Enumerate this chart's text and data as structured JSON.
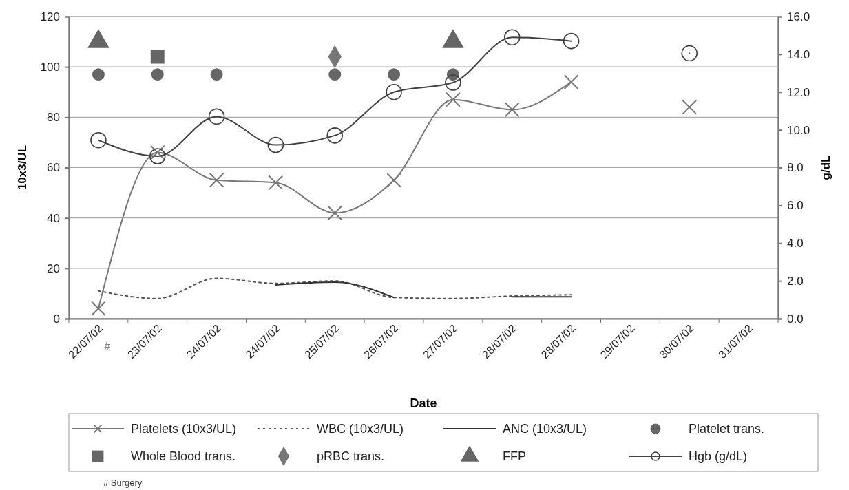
{
  "chart_data": {
    "type": "line",
    "xlabel": "Date",
    "ylabel": "10x3/UL",
    "y2label": "g/dL",
    "categories": [
      "22/07/02",
      "23/07/02",
      "24/07/02",
      "24/07/02",
      "25/07/02",
      "26/07/02",
      "27/07/02",
      "28/07/02",
      "28/07/02",
      "29/07/02",
      "30/07/02",
      "31/07/02"
    ],
    "series": [
      {
        "name": "Platelets (10x3/UL)",
        "color": "#777777",
        "marker": "cross",
        "line_style": "solid",
        "values": [
          4,
          66,
          55,
          54,
          42,
          55,
          87,
          83,
          94,
          null,
          84,
          null
        ]
      },
      {
        "name": "WBC (10x3/UL)",
        "color": "#555555",
        "marker": "none",
        "line_style": "dotted",
        "values": [
          11,
          8,
          16,
          14,
          15,
          8.4,
          8,
          9,
          9.5,
          null,
          null,
          null
        ]
      },
      {
        "name": "ANC (10x3/UL)",
        "color": "#333333",
        "marker": "none",
        "line_style": "solid",
        "values": [
          null,
          null,
          null,
          13.4,
          14.5,
          8.4,
          null,
          8.7,
          8.7,
          null,
          null,
          null
        ]
      },
      {
        "name": "Platelet trans.",
        "type": "scatter",
        "color": "#666666",
        "marker": "circle",
        "values": [
          97,
          97,
          97,
          null,
          97,
          97,
          97,
          null,
          null,
          null,
          null,
          null
        ]
      },
      {
        "name": "Whole Blood trans.",
        "type": "scatter",
        "color": "#666666",
        "marker": "square",
        "values": [
          null,
          104,
          null,
          null,
          null,
          null,
          null,
          null,
          null,
          null,
          null,
          null
        ]
      },
      {
        "name": "pRBC trans.",
        "type": "scatter",
        "color": "#777777",
        "marker": "diamond",
        "values": [
          null,
          null,
          null,
          null,
          104,
          null,
          null,
          null,
          null,
          null,
          null,
          null
        ]
      },
      {
        "name": "FFP",
        "type": "scatter",
        "color": "#666666",
        "marker": "triangle",
        "values": [
          110,
          null,
          null,
          null,
          null,
          null,
          110,
          null,
          null,
          null,
          null,
          null
        ]
      },
      {
        "name": "Hgb (g/dL)",
        "axis": "y2",
        "color": "#404040",
        "marker": "circle",
        "line_style": "solid",
        "values": [
          9.45,
          8.6,
          10.7,
          9.2,
          9.7,
          12.0,
          12.5,
          14.9,
          14.7,
          null,
          14.05,
          null
        ]
      }
    ],
    "ylim": [
      0,
      120
    ],
    "yticks": [
      0,
      20,
      40,
      60,
      80,
      100,
      120
    ],
    "y2lim": [
      0,
      16
    ],
    "y2ticks": [
      {
        "value": 0,
        "label": "0.0"
      },
      {
        "value": 2,
        "label": "2.0"
      },
      {
        "value": 4,
        "label": "4.0"
      },
      {
        "value": 6,
        "label": "6.0"
      },
      {
        "value": 8,
        "label": "8.0"
      },
      {
        "value": 10,
        "label": "10.0"
      },
      {
        "value": 12,
        "label": "12.0"
      },
      {
        "value": 14,
        "label": "14.0"
      },
      {
        "value": 16,
        "label": "16.0"
      }
    ],
    "grid": "y",
    "legend": "bottom",
    "annotations": [
      "#",
      "# Surgery"
    ]
  }
}
